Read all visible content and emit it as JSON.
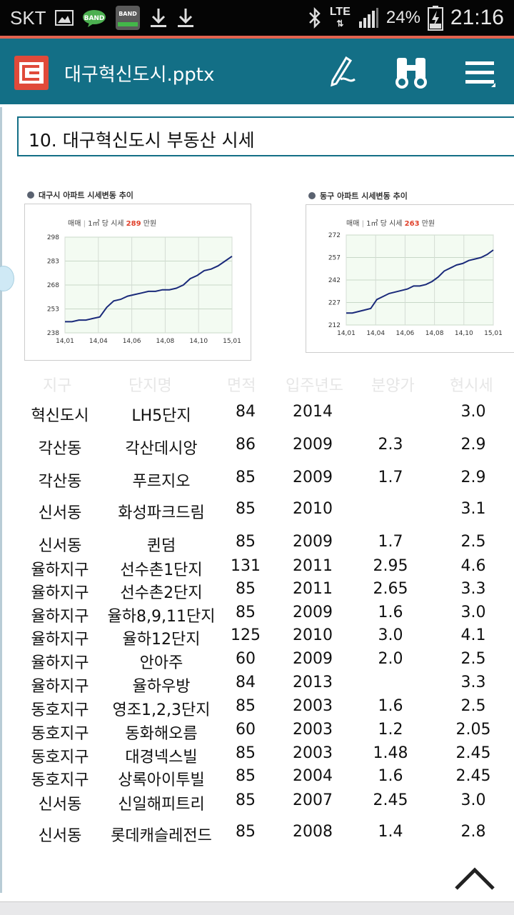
{
  "status_bar": {
    "carrier": "SKT",
    "lte": "LTE",
    "battery": "24%",
    "time": "21:16",
    "icons": [
      "image-icon",
      "band-chat-icon",
      "band-app-icon",
      "download-icon",
      "download-icon",
      "bluetooth-icon",
      "signal-icon",
      "battery-charging-icon"
    ]
  },
  "toolbar": {
    "doc_title": "대구혁신도시.pptx",
    "icons": [
      "app-logo-icon",
      "pen-icon",
      "binoculars-icon",
      "menu-icon"
    ]
  },
  "slide": {
    "title": "10. 대구혁신도시 부동산 시세"
  },
  "chart_data": [
    {
      "type": "line",
      "title": "대구시 아파트 시세변동 추이",
      "subtitle_label": "매매",
      "subtitle_unit": "1㎡ 당 시세",
      "subtitle_value": "289",
      "subtitle_suffix": "만원",
      "x_ticks": [
        "14,01",
        "14,04",
        "14,06",
        "14,08",
        "14,10",
        "15,01"
      ],
      "y_ticks": [
        238,
        253,
        268,
        283,
        298
      ],
      "ylim": [
        238,
        298
      ],
      "x": [
        0,
        0.5,
        1,
        1.5,
        2,
        2.5,
        3,
        3.5,
        4,
        4.5,
        5,
        5.5,
        6,
        6.5,
        7,
        7.5,
        8,
        8.5,
        9,
        9.5,
        10,
        10.5,
        11,
        11.5,
        12
      ],
      "values": [
        245,
        245,
        246,
        246,
        247,
        248,
        254,
        258,
        259,
        261,
        262,
        263,
        264,
        264,
        265,
        265,
        266,
        268,
        272,
        274,
        277,
        278,
        280,
        283,
        286
      ]
    },
    {
      "type": "line",
      "title": "동구 아파트 시세변동 추이",
      "subtitle_label": "매매",
      "subtitle_unit": "1㎡ 당 시세",
      "subtitle_value": "263",
      "subtitle_suffix": "만원",
      "x_ticks": [
        "14,01",
        "14,04",
        "14,06",
        "14,08",
        "14,10",
        "15,01"
      ],
      "y_ticks": [
        212,
        227,
        242,
        257,
        272
      ],
      "ylim": [
        212,
        272
      ],
      "x": [
        0,
        0.5,
        1,
        1.5,
        2,
        2.5,
        3,
        3.5,
        4,
        4.5,
        5,
        5.5,
        6,
        6.5,
        7,
        7.5,
        8,
        8.5,
        9,
        9.5,
        10,
        10.5,
        11,
        11.5,
        12
      ],
      "values": [
        220,
        220,
        221,
        222,
        223,
        229,
        231,
        233,
        234,
        235,
        236,
        238,
        238,
        239,
        241,
        244,
        248,
        250,
        252,
        253,
        255,
        256,
        257,
        259,
        262
      ]
    }
  ],
  "table": {
    "faded_header": [
      "지구",
      "단지명",
      "면적",
      "입주년도",
      "분양가",
      "현시세"
    ],
    "rows": [
      {
        "district": "혁신도시",
        "complex": "LH5단지",
        "area": "84",
        "year": "2014",
        "initial": "",
        "current": "3.0"
      },
      {
        "district": "각산동",
        "complex": "각산데시앙",
        "area": "86",
        "year": "2009",
        "initial": "2.3",
        "current": "2.9"
      },
      {
        "district": "각산동",
        "complex": "푸르지오",
        "area": "85",
        "year": "2009",
        "initial": "1.7",
        "current": "2.9"
      },
      {
        "district": "신서동",
        "complex": "화성파크드림",
        "area": "85",
        "year": "2010",
        "initial": "",
        "current": "3.1"
      },
      {
        "district": "신서동",
        "complex": "퀸덤",
        "area": "85",
        "year": "2009",
        "initial": "1.7",
        "current": "2.5"
      },
      {
        "district": "율하지구",
        "complex": "선수촌1단지",
        "area": "131",
        "year": "2011",
        "initial": "2.95",
        "current": "4.6"
      },
      {
        "district": "율하지구",
        "complex": "선수촌2단지",
        "area": "85",
        "year": "2011",
        "initial": "2.65",
        "current": "3.3"
      },
      {
        "district": "율하지구",
        "complex": "율하8,9,11단지",
        "area": "85",
        "year": "2009",
        "initial": "1.6",
        "current": "3.0"
      },
      {
        "district": "율하지구",
        "complex": "율하12단지",
        "area": "125",
        "year": "2010",
        "initial": "3.0",
        "current": "4.1"
      },
      {
        "district": "율하지구",
        "complex": "안아주",
        "area": "60",
        "year": "2009",
        "initial": "2.0",
        "current": "2.5"
      },
      {
        "district": "율하지구",
        "complex": "율하우방",
        "area": "84",
        "year": "2013",
        "initial": "",
        "current": "3.3"
      },
      {
        "district": "동호지구",
        "complex": "영조1,2,3단지",
        "area": "85",
        "year": "2003",
        "initial": "1.6",
        "current": "2.5"
      },
      {
        "district": "동호지구",
        "complex": "동화해오름",
        "area": "60",
        "year": "2003",
        "initial": "1.2",
        "current": "2.05"
      },
      {
        "district": "동호지구",
        "complex": "대경넥스빌",
        "area": "85",
        "year": "2003",
        "initial": "1.48",
        "current": "2.45"
      },
      {
        "district": "동호지구",
        "complex": "상록아이투빌",
        "area": "85",
        "year": "2004",
        "initial": "1.6",
        "current": "2.45"
      },
      {
        "district": "신서동",
        "complex": "신일해피트리",
        "area": "85",
        "year": "2007",
        "initial": "2.45",
        "current": "3.0"
      },
      {
        "district": "신서동",
        "complex": "롯데캐슬레전드",
        "area": "85",
        "year": "2008",
        "initial": "1.4",
        "current": "2.8"
      }
    ]
  }
}
